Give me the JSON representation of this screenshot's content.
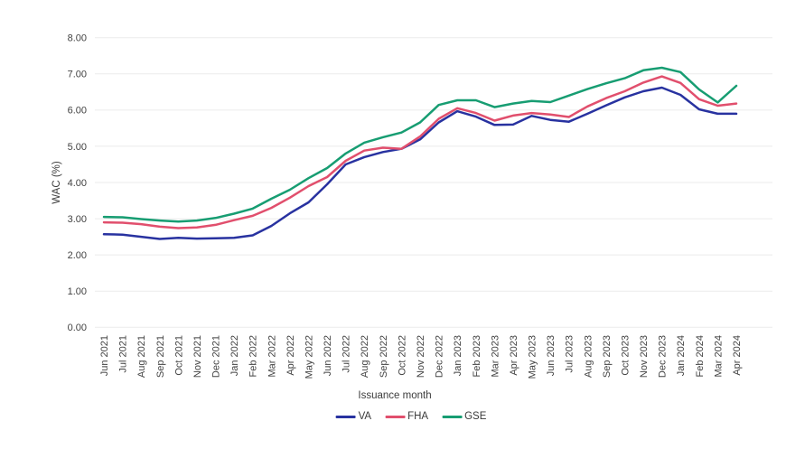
{
  "chart_data": {
    "type": "line",
    "title": "",
    "xlabel": "Issuance month",
    "ylabel": "WAC (%)",
    "ylim": [
      0,
      8
    ],
    "yticks": [
      "0.00",
      "1.00",
      "2.00",
      "3.00",
      "4.00",
      "5.00",
      "6.00",
      "7.00",
      "8.00"
    ],
    "grid": "horizontal",
    "legend_position": "bottom",
    "categories": [
      "Jun 2021",
      "Jul 2021",
      "Aug 2021",
      "Sep 2021",
      "Oct 2021",
      "Nov 2021",
      "Dec 2021",
      "Jan 2022",
      "Feb 2022",
      "Mar 2022",
      "Apr 2022",
      "May 2022",
      "Jun 2022",
      "Jul 2022",
      "Aug 2022",
      "Sep 2022",
      "Oct 2022",
      "Nov 2022",
      "Dec 2022",
      "Jan 2023",
      "Feb 2023",
      "Mar 2023",
      "Apr 2023",
      "May 2023",
      "Jun 2023",
      "Jul 2023",
      "Aug 2023",
      "Sep 2023",
      "Oct 2023",
      "Nov 2023",
      "Dec 2023",
      "Jan 2024",
      "Feb 2024",
      "Mar 2024",
      "Apr 2024"
    ],
    "series": [
      {
        "name": "VA",
        "color": "#2832a0",
        "values": [
          2.57,
          2.56,
          2.5,
          2.44,
          2.47,
          2.45,
          2.46,
          2.47,
          2.54,
          2.8,
          3.15,
          3.45,
          3.95,
          4.5,
          4.7,
          4.84,
          4.93,
          5.19,
          5.66,
          5.97,
          5.82,
          5.59,
          5.6,
          5.84,
          5.73,
          5.68,
          5.9,
          6.13,
          6.35,
          6.52,
          6.62,
          6.42,
          6.02,
          5.9,
          5.9
        ]
      },
      {
        "name": "FHA",
        "color": "#e14f6d",
        "values": [
          2.9,
          2.89,
          2.85,
          2.78,
          2.74,
          2.76,
          2.83,
          2.96,
          3.08,
          3.3,
          3.58,
          3.9,
          4.15,
          4.6,
          4.88,
          4.96,
          4.93,
          5.27,
          5.76,
          6.05,
          5.92,
          5.71,
          5.85,
          5.92,
          5.88,
          5.81,
          6.1,
          6.33,
          6.52,
          6.76,
          6.93,
          6.75,
          6.3,
          6.12,
          6.18
        ]
      },
      {
        "name": "GSE",
        "color": "#179d72",
        "values": [
          3.05,
          3.04,
          2.99,
          2.95,
          2.92,
          2.95,
          3.02,
          3.14,
          3.28,
          3.55,
          3.8,
          4.12,
          4.4,
          4.8,
          5.1,
          5.25,
          5.38,
          5.66,
          6.14,
          6.27,
          6.27,
          6.08,
          6.18,
          6.25,
          6.22,
          6.4,
          6.58,
          6.74,
          6.88,
          7.1,
          7.17,
          7.05,
          6.57,
          6.21,
          6.67
        ]
      }
    ]
  },
  "colors": {
    "background": "#ffffff",
    "gridline": "#ebebeb",
    "tick_text": "#424242",
    "axis_title_text": "#3c3c3c"
  }
}
